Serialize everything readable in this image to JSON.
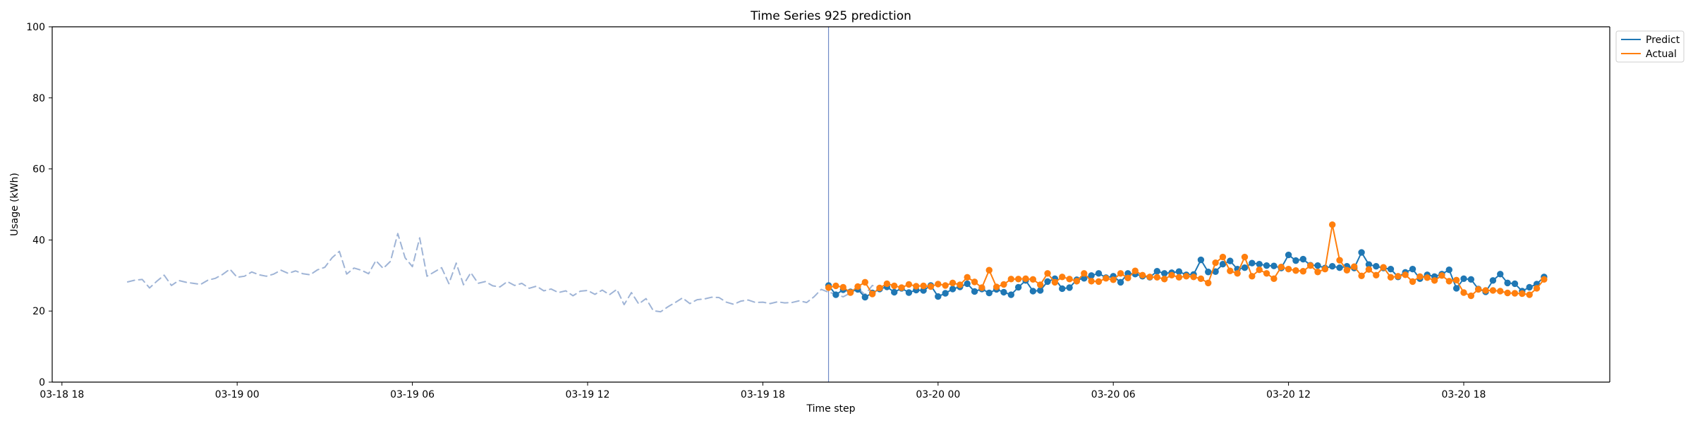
{
  "chart_data": {
    "type": "line",
    "title": "Time Series 925 prediction",
    "xlabel": "Time step",
    "ylabel": "Usage (kWh)",
    "ylim": [
      0,
      100
    ],
    "yticks": [
      0,
      20,
      40,
      60,
      80,
      100
    ],
    "xlim": [
      "2024-03-18T17:40:00",
      "2024-03-20T23:00:00"
    ],
    "xticks": [
      "03-18 18",
      "03-19 00",
      "03-19 06",
      "03-19 12",
      "03-19 18",
      "03-20 00",
      "03-20 06",
      "03-20 12",
      "03-20 18"
    ],
    "xticks_iso": [
      "2024-03-18T18:00:00",
      "2024-03-19T00:00:00",
      "2024-03-19T06:00:00",
      "2024-03-19T12:00:00",
      "2024-03-19T18:00:00",
      "2024-03-20T00:00:00",
      "2024-03-20T06:00:00",
      "2024-03-20T12:00:00",
      "2024-03-20T18:00:00"
    ],
    "split_time": "2024-03-19T20:15:00",
    "grid": false,
    "legend": {
      "placement": "upper-right-outside",
      "entries": [
        "Predict",
        "Actual"
      ]
    },
    "history": {
      "start": "2024-03-18T20:15:00",
      "step_minutes": 15,
      "color": "#9fb4d6",
      "values": [
        28.2,
        28.7,
        28.9,
        26.5,
        28.4,
        30.1,
        27.2,
        28.6,
        28.1,
        27.8,
        27.5,
        28.7,
        29.2,
        30.3,
        31.8,
        29.5,
        29.8,
        31.0,
        30.2,
        29.8,
        30.4,
        31.5,
        30.6,
        31.3,
        30.5,
        30.2,
        31.6,
        32.3,
        35.0,
        36.8,
        30.4,
        32.1,
        31.5,
        30.5,
        34.2,
        32.0,
        34.0,
        41.8,
        35.0,
        32.5,
        40.6,
        29.8,
        31.0,
        32.2,
        27.7,
        33.5,
        27.4,
        30.8,
        27.8,
        28.3,
        27.1,
        26.8,
        28.3,
        27.2,
        27.8,
        26.4,
        27.0,
        25.7,
        26.2,
        25.2,
        25.7,
        24.3,
        25.6,
        25.8,
        24.7,
        25.9,
        24.6,
        26.1,
        21.8,
        25.2,
        22.0,
        23.5,
        20.1,
        19.8,
        21.2,
        22.4,
        23.7,
        22.1,
        23.2,
        23.4,
        23.9,
        23.8,
        22.5,
        21.9,
        22.8,
        23.1,
        22.4,
        22.5,
        22.1,
        22.6,
        22.3,
        22.4,
        22.9,
        22.4,
        24.0,
        26.1,
        25.3,
        24.8,
        24.0,
        25.1,
        26.5,
        24.6,
        27.2,
        26.5
      ]
    },
    "series": [
      {
        "name": "Predict",
        "start": "2024-03-19T20:15:00",
        "step_minutes": 15,
        "color": "#1f77b4",
        "values": [
          27.2,
          24.6,
          26.0,
          25.4,
          26.1,
          23.9,
          25.1,
          26.2,
          26.8,
          25.3,
          26.4,
          25.2,
          25.9,
          25.8,
          27.2,
          24.1,
          25.0,
          26.2,
          26.8,
          27.7,
          25.5,
          26.2,
          25.1,
          26.1,
          25.3,
          24.6,
          26.7,
          28.6,
          25.6,
          25.8,
          28.3,
          29.1,
          26.3,
          26.6,
          28.8,
          29.2,
          30.0,
          30.6,
          29.4,
          29.8,
          28.1,
          30.6,
          30.4,
          29.8,
          29.5,
          31.2,
          30.6,
          30.8,
          31.1,
          30.2,
          30.3,
          34.4,
          31.0,
          31.1,
          33.2,
          34.1,
          31.8,
          32.2,
          33.5,
          33.2,
          32.8,
          32.7,
          32.1,
          35.8,
          34.2,
          34.6,
          32.9,
          32.8,
          32.1,
          32.6,
          32.2,
          32.6,
          32.1,
          36.5,
          33.1,
          32.6,
          32.1,
          31.8,
          29.6,
          30.9,
          31.8,
          29.1,
          30.2,
          29.7,
          30.4,
          31.6,
          26.4,
          29.1,
          28.9,
          26.2,
          25.4,
          28.6,
          30.4,
          27.9,
          27.7,
          25.6,
          26.7,
          27.6,
          29.6
        ]
      },
      {
        "name": "Actual",
        "start": "2024-03-19T20:15:00",
        "step_minutes": 15,
        "color": "#ff7f0e",
        "values": [
          26.6,
          27.1,
          26.7,
          25.2,
          26.9,
          28.1,
          24.8,
          26.5,
          27.7,
          27.1,
          26.6,
          27.5,
          27.0,
          27.1,
          26.9,
          27.6,
          27.2,
          27.9,
          27.4,
          29.5,
          28.2,
          26.6,
          31.5,
          26.8,
          27.5,
          29.0,
          29.0,
          29.1,
          28.9,
          27.4,
          30.6,
          28.1,
          29.6,
          29.0,
          28.4,
          30.6,
          28.4,
          28.3,
          29.2,
          28.8,
          30.6,
          29.3,
          31.3,
          30.1,
          29.6,
          29.5,
          29.0,
          30.1,
          29.5,
          29.8,
          29.6,
          29.1,
          27.9,
          33.6,
          35.2,
          31.3,
          30.6,
          35.2,
          29.8,
          31.6,
          30.6,
          29.1,
          32.4,
          31.8,
          31.4,
          31.2,
          32.8,
          31.0,
          31.8,
          44.3,
          34.3,
          31.5,
          32.5,
          29.9,
          31.7,
          30.1,
          32.3,
          29.5,
          29.8,
          30.2,
          28.3,
          29.7,
          29.4,
          28.6,
          30.0,
          28.4,
          28.7,
          25.2,
          24.3,
          26.1,
          25.8,
          25.8,
          25.6,
          25.1,
          25.0,
          24.9,
          24.6,
          26.4,
          28.9
        ]
      }
    ]
  }
}
